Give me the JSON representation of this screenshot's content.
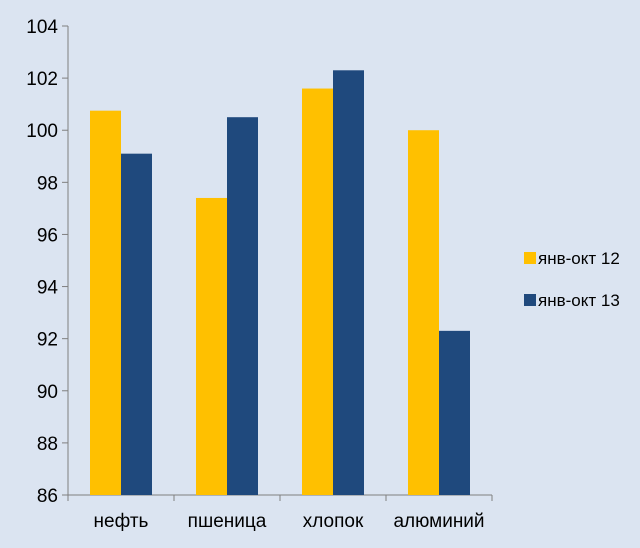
{
  "chart_data": {
    "type": "bar",
    "categories": [
      "нефть",
      "пшеница",
      "хлопок",
      "алюминий"
    ],
    "series": [
      {
        "name": "янв-окт 12",
        "values": [
          100.75,
          97.4,
          101.6,
          100.0
        ],
        "color": "#ffc000"
      },
      {
        "name": "янв-окт 13",
        "values": [
          99.1,
          100.5,
          102.3,
          92.3
        ],
        "color": "#1f497d"
      }
    ],
    "ylim": [
      86,
      104
    ],
    "yticks": [
      86,
      88,
      90,
      92,
      94,
      96,
      98,
      100,
      102,
      104
    ],
    "grid": false,
    "legend": "right"
  }
}
